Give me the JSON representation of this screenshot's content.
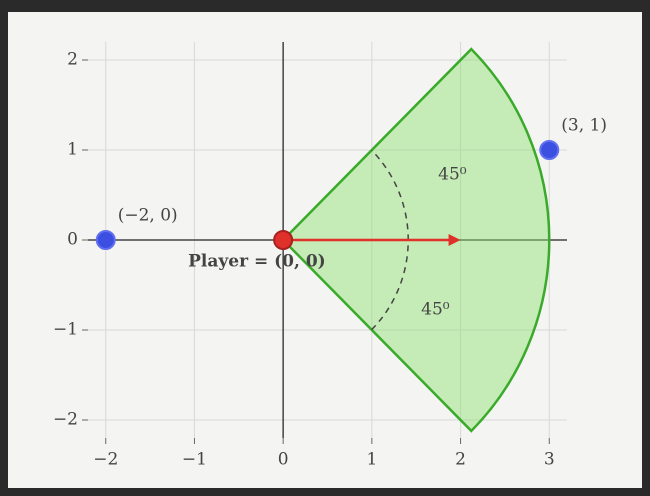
{
  "chart_data": {
    "type": "scatter",
    "xlim": [
      -2.2,
      3.2
    ],
    "ylim": [
      -2.2,
      2.2
    ],
    "xticks": [
      {
        "value": -2,
        "label": "−2"
      },
      {
        "value": -1,
        "label": "−1"
      },
      0,
      1,
      2,
      3
    ],
    "yticks": [
      {
        "value": -2,
        "label": "−2"
      },
      {
        "value": -1,
        "label": "−1"
      },
      0,
      1,
      2
    ],
    "grid": true,
    "points": {
      "x": [
        -2,
        3
      ],
      "y": [
        0,
        1
      ],
      "labels": [
        "(−2, 0)",
        "(3, 1)"
      ],
      "color": "#3b4fe0"
    },
    "player": {
      "x": 0,
      "y": 0,
      "label": "Player = (0, 0)",
      "color": "#e0302a"
    },
    "sector": {
      "center": [
        0,
        0
      ],
      "radius": 3,
      "angles": [
        -45,
        45
      ],
      "color": "#3aaa2a"
    },
    "arc_radius": 1.41,
    "arrow": {
      "from": [
        0,
        0
      ],
      "to": [
        2,
        0
      ]
    },
    "angle_labels": [
      "45⁰",
      "45⁰"
    ]
  }
}
